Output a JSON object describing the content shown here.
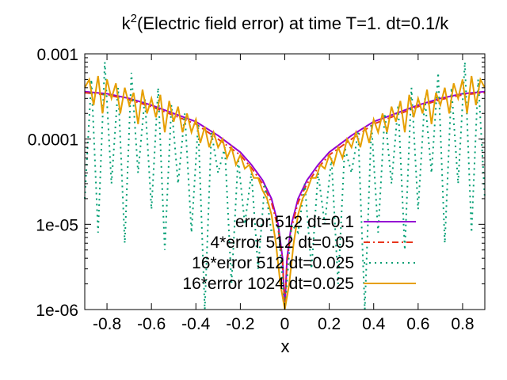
{
  "chart_data": {
    "type": "line",
    "title": {
      "prefix": "k",
      "superscript": "2",
      "rest": "(Electric field error) at time T=1. dt=0.1/k"
    },
    "xlabel": "x",
    "ylabel": "",
    "xlim": [
      -0.9,
      0.9
    ],
    "ylim": [
      1e-06,
      0.001
    ],
    "yscale": "log",
    "grid": false,
    "legend_position": "bottom-right",
    "x_ticks": [
      -0.8,
      -0.6,
      -0.4,
      -0.2,
      0,
      0.2,
      0.4,
      0.6,
      0.8
    ],
    "x_tick_labels": [
      "-0.8",
      "-0.6",
      "-0.4",
      "-0.2",
      "0",
      "0.2",
      "0.4",
      "0.6",
      "0.8"
    ],
    "y_ticks": [
      0.001,
      0.0001,
      1e-05,
      1e-06
    ],
    "y_tick_labels": [
      "0.001",
      "0.0001",
      "1e-05",
      "1e-06"
    ],
    "series": [
      {
        "name": "error 512 dt=0.1",
        "color": "#9400d3",
        "dash": "solid",
        "x": [
          -0.9,
          -0.8,
          -0.7,
          -0.6,
          -0.5,
          -0.4,
          -0.3,
          -0.2,
          -0.15,
          -0.1,
          -0.06,
          -0.03,
          -0.01,
          0,
          0.01,
          0.03,
          0.06,
          0.1,
          0.15,
          0.2,
          0.3,
          0.4,
          0.5,
          0.6,
          0.7,
          0.8,
          0.9
        ],
        "values": [
          0.00036,
          0.00034,
          0.0003,
          0.00025,
          0.0002,
          0.00016,
          0.00011,
          7e-05,
          5e-05,
          3.3e-05,
          2e-05,
          1e-05,
          4e-06,
          1e-06,
          4e-06,
          1e-05,
          2e-05,
          3.3e-05,
          5e-05,
          7e-05,
          0.00011,
          0.00016,
          0.0002,
          0.00025,
          0.0003,
          0.00034,
          0.00036
        ]
      },
      {
        "name": "4*error 512 dt=0.05",
        "color": "#e8351b",
        "dash": "dash-dot",
        "x": [
          -0.9,
          -0.8,
          -0.7,
          -0.6,
          -0.5,
          -0.4,
          -0.3,
          -0.2,
          -0.15,
          -0.1,
          -0.06,
          -0.03,
          -0.01,
          0,
          0.01,
          0.03,
          0.06,
          0.1,
          0.15,
          0.2,
          0.3,
          0.4,
          0.5,
          0.6,
          0.7,
          0.8,
          0.9
        ],
        "values": [
          0.00035,
          0.00033,
          0.00029,
          0.00024,
          0.00019,
          0.00015,
          0.0001,
          6.5e-05,
          4.6e-05,
          3e-05,
          1.8e-05,
          9e-06,
          3.5e-06,
          1e-06,
          3.5e-06,
          9e-06,
          1.8e-05,
          3e-05,
          4.6e-05,
          6.5e-05,
          0.0001,
          0.00015,
          0.00019,
          0.00024,
          0.00029,
          0.00033,
          0.00035
        ]
      },
      {
        "name": "16*error 512 dt=0.025",
        "color": "#009e73",
        "dash": "dotted",
        "x": [
          -0.9,
          -0.87,
          -0.84,
          -0.81,
          -0.78,
          -0.75,
          -0.72,
          -0.69,
          -0.66,
          -0.63,
          -0.6,
          -0.57,
          -0.54,
          -0.51,
          -0.48,
          -0.45,
          -0.42,
          -0.39,
          -0.36,
          -0.33,
          -0.3,
          -0.27,
          -0.24,
          -0.21,
          -0.18,
          -0.15,
          -0.12,
          -0.09,
          -0.06,
          -0.03,
          0,
          0.03,
          0.06,
          0.09,
          0.12,
          0.15,
          0.18,
          0.21,
          0.24,
          0.27,
          0.3,
          0.33,
          0.36,
          0.39,
          0.42,
          0.45,
          0.48,
          0.51,
          0.54,
          0.57,
          0.6,
          0.63,
          0.66,
          0.69,
          0.72,
          0.75,
          0.78,
          0.81,
          0.84,
          0.87,
          0.9
        ],
        "values": [
          2e-05,
          0.0005,
          8e-06,
          0.0008,
          3e-05,
          0.0004,
          6e-06,
          0.0006,
          4e-05,
          0.0003,
          1.5e-05,
          0.0004,
          5e-06,
          0.00025,
          3e-05,
          0.0002,
          8e-06,
          0.00015,
          1e-06,
          0.00012,
          4e-05,
          8e-05,
          2e-06,
          6e-05,
          1e-05,
          4e-05,
          3e-06,
          3e-05,
          8e-06,
          1e-05,
          1e-06,
          1e-05,
          8e-06,
          3e-05,
          3e-06,
          4e-05,
          1e-05,
          6e-05,
          2e-06,
          8e-05,
          4e-05,
          0.00012,
          1e-06,
          0.00015,
          8e-06,
          0.0002,
          3e-05,
          0.00025,
          5e-06,
          0.0004,
          1.5e-05,
          0.0003,
          4e-05,
          0.0006,
          6e-06,
          0.0004,
          3e-05,
          0.0008,
          8e-06,
          0.0005,
          2e-05
        ]
      },
      {
        "name": "16*error 1024 dt=0.025",
        "color": "#e69f00",
        "dash": "solid",
        "x": [
          -0.9,
          -0.88,
          -0.86,
          -0.84,
          -0.82,
          -0.8,
          -0.78,
          -0.76,
          -0.74,
          -0.72,
          -0.7,
          -0.68,
          -0.66,
          -0.64,
          -0.62,
          -0.6,
          -0.58,
          -0.56,
          -0.54,
          -0.52,
          -0.5,
          -0.48,
          -0.46,
          -0.44,
          -0.42,
          -0.4,
          -0.38,
          -0.36,
          -0.34,
          -0.32,
          -0.3,
          -0.28,
          -0.26,
          -0.24,
          -0.22,
          -0.2,
          -0.18,
          -0.16,
          -0.14,
          -0.12,
          -0.1,
          -0.08,
          -0.06,
          -0.04,
          -0.02,
          0,
          0.02,
          0.04,
          0.06,
          0.08,
          0.1,
          0.12,
          0.14,
          0.16,
          0.18,
          0.2,
          0.22,
          0.24,
          0.26,
          0.28,
          0.3,
          0.32,
          0.34,
          0.36,
          0.38,
          0.4,
          0.42,
          0.44,
          0.46,
          0.48,
          0.5,
          0.52,
          0.54,
          0.56,
          0.58,
          0.6,
          0.62,
          0.64,
          0.66,
          0.68,
          0.7,
          0.72,
          0.74,
          0.76,
          0.78,
          0.8,
          0.82,
          0.84,
          0.86,
          0.88,
          0.9
        ],
        "values": [
          0.0004,
          0.0005,
          0.00025,
          0.00055,
          0.0002,
          0.0005,
          0.0003,
          0.00045,
          0.0002,
          0.0004,
          0.00025,
          0.00035,
          0.00015,
          0.00038,
          0.0002,
          0.0003,
          0.00018,
          0.00033,
          0.00012,
          0.00028,
          0.00016,
          0.00024,
          0.00012,
          0.0002,
          0.00012,
          0.00017,
          9e-05,
          0.00014,
          8e-05,
          0.00012,
          8e-05,
          0.0001,
          6e-05,
          8e-05,
          5e-05,
          6.5e-05,
          4.5e-05,
          5e-05,
          3.5e-05,
          3.5e-05,
          2.5e-05,
          2e-05,
          1.3e-05,
          6e-06,
          2e-06,
          1e-06,
          2e-06,
          6e-06,
          1.3e-05,
          2e-05,
          2.5e-05,
          3.5e-05,
          3.5e-05,
          5e-05,
          4.5e-05,
          6.5e-05,
          5e-05,
          8e-05,
          6e-05,
          0.0001,
          8e-05,
          0.00012,
          8e-05,
          0.00014,
          9e-05,
          0.00017,
          0.00012,
          0.0002,
          0.00012,
          0.00024,
          0.00016,
          0.00028,
          0.00012,
          0.00033,
          0.00018,
          0.0003,
          0.0002,
          0.00038,
          0.00015,
          0.00035,
          0.00025,
          0.0004,
          0.0002,
          0.00045,
          0.0003,
          0.0005,
          0.0002,
          0.00055,
          0.00025,
          0.0005,
          0.0004
        ]
      }
    ]
  }
}
